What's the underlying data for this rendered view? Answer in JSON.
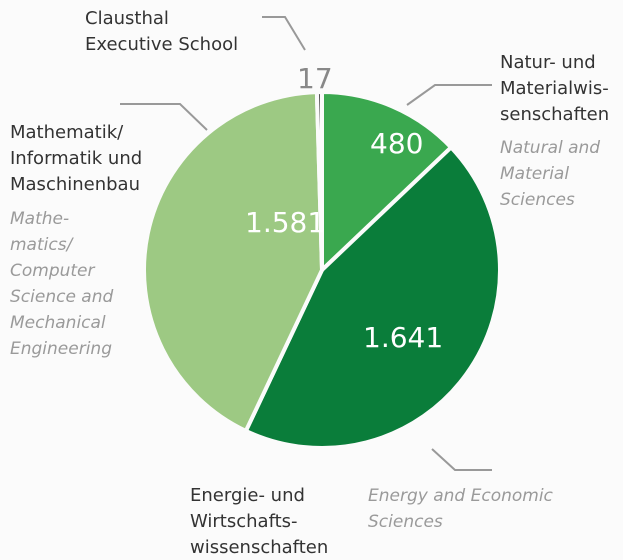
{
  "chart_data": {
    "type": "pie",
    "categories": [
      "Natur- und\nMaterialwis-\nsenschaften",
      "Energie- und\nWirtschafts-\nwissenschaften",
      "Mathematik/\nInformatik und\nMaschinenbau",
      "Clausthal\nExecutive School"
    ],
    "category_translations": [
      "Natural and\nMaterial\nSciences",
      "Energy and Economic\nSciences",
      "Mathe-\nmatics/\nComputer\nScience and\nMechanical\nEngineering",
      null
    ],
    "values": [
      480,
      1641,
      1581,
      17
    ],
    "value_labels": [
      "480",
      "1.641",
      "1.581",
      "17"
    ],
    "colors": [
      "#3aa84f",
      "#0a7d3a",
      "#9dc983",
      "#555555"
    ]
  }
}
